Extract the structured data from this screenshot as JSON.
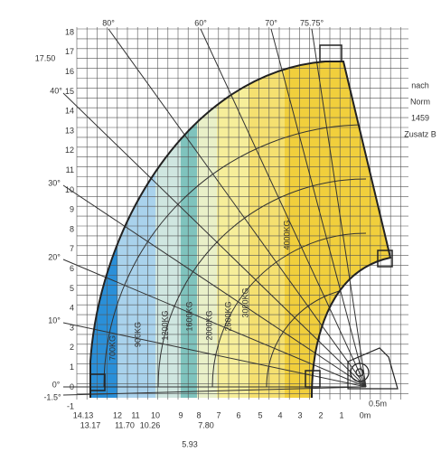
{
  "top_angles": [
    "80°",
    "60°",
    "70°",
    "75.75°"
  ],
  "left_labels": [
    "17.50",
    "40°",
    "30°",
    "20°",
    "10°",
    "0°",
    "-1.5°"
  ],
  "y_axis": [
    "18",
    "17",
    "16",
    "15",
    "14",
    "13",
    "12",
    "11",
    "10",
    "9",
    "8",
    "7",
    "6",
    "5",
    "4",
    "3",
    "2",
    "1",
    "0",
    "-1"
  ],
  "x_axis": [
    "14.13",
    "13.17",
    "12",
    "11.70",
    "11",
    "10",
    "10.26",
    "9",
    "8",
    "7.80",
    "7",
    "6",
    "5",
    "4",
    "3",
    "2",
    "1",
    "0m",
    "5.93"
  ],
  "loads": [
    "700KG",
    "900KG",
    "1200KG",
    "1600KG",
    "2000KG",
    "2500KG",
    "3000KG",
    "4000KG"
  ],
  "note": [
    "nach",
    "Norm",
    "1459",
    "Zusatz B"
  ],
  "scale": "0.5m"
}
